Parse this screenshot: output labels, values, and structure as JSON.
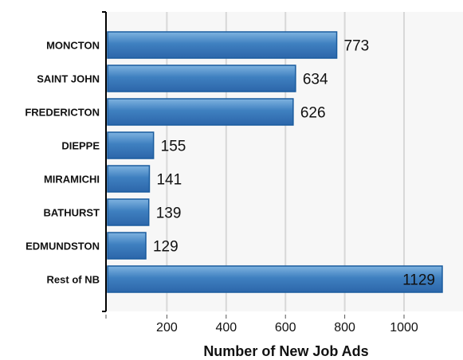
{
  "chart_data": {
    "type": "bar",
    "orientation": "horizontal",
    "title": "",
    "xlabel": "Number of New Job Ads",
    "ylabel": "",
    "categories": [
      "MONCTON",
      "SAINT JOHN",
      "FREDERICTON",
      "DIEPPE",
      "MIRAMICHI",
      "BATHURST",
      "EDMUNDSTON",
      "Rest of NB"
    ],
    "values": [
      773,
      634,
      626,
      155,
      141,
      139,
      129,
      1129
    ],
    "value_labels": [
      "773",
      "634",
      "626",
      "155",
      "141",
      "139",
      "129",
      "1129"
    ],
    "xticks": [
      200,
      400,
      600,
      800,
      1000
    ],
    "xtick_labels": [
      "200",
      "400",
      "600",
      "800",
      "1000"
    ],
    "xlim": [
      0,
      1185
    ],
    "grid": "vertical",
    "legend": "none",
    "colors": {
      "bar_top": "#7fb3e0",
      "bar_mid": "#3f80c0",
      "bar_bottom": "#2c66aa",
      "bar_stroke": "#1a5c9e",
      "grid": "#d8d8d8",
      "plot_background": "#f7f7f7",
      "axis": "#000000"
    }
  }
}
